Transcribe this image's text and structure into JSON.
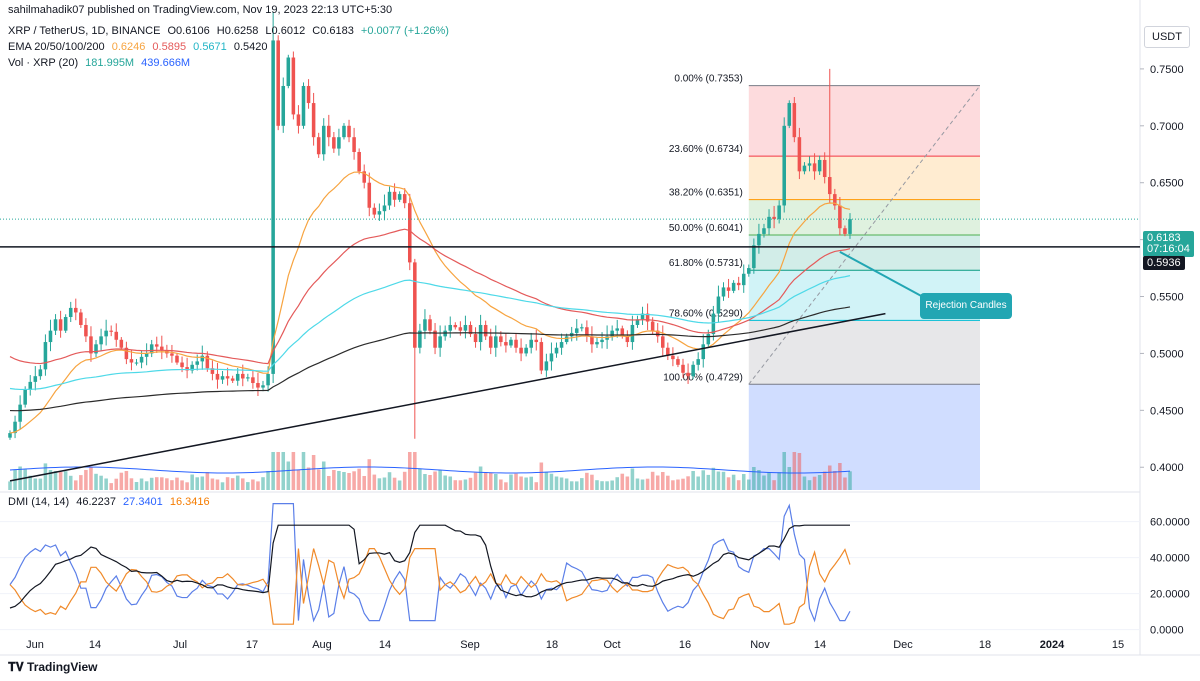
{
  "header": {
    "publisher_note": "sahilmahadik07 published on TradingView.com, Nov 19, 2023 22:13 UTC+5:30",
    "symbol_line": "XRP / TetherUS, 1D, BINANCE",
    "ohlc": {
      "o": "O0.6106",
      "h": "H0.6258",
      "l": "L0.6012",
      "c": "C0.6183",
      "chg": "+0.0077 (+1.26%)"
    },
    "ema_label": "EMA 20/50/100/200",
    "ema_values": [
      "0.6246",
      "0.5895",
      "0.5671",
      "0.5420"
    ],
    "vol_label": "Vol · XRP (20)",
    "vol_values": [
      "181.995M",
      "439.666M"
    ],
    "dmi_label": "DMI (14, 14)",
    "dmi_values": [
      "46.2237",
      "27.3401",
      "16.3416"
    ]
  },
  "currency_button": "USDT",
  "branding": "TradingView",
  "last_price": {
    "value": "0.6183",
    "countdown": "07:16:04"
  },
  "support_price": "0.5936",
  "callout_text": "Rejection Candles",
  "colors": {
    "up": "#26a69a",
    "down": "#ef5350",
    "ema20": "#f7a440",
    "ema50": "#e45a5a",
    "ema100": "#4ed9e8",
    "ema200": "#2b2b2b",
    "dmi_adx": "#131722",
    "dmi_plus": "#5b7fe8",
    "dmi_minus": "#f08a2a",
    "callout": "#22a6b3"
  },
  "chart_data": [
    {
      "type": "candlestick",
      "title": "XRP / TetherUS, 1D, BINANCE",
      "ylim": [
        0.38,
        0.8
      ],
      "y_ticks": [
        "0.7500",
        "0.7000",
        "0.6500",
        "0.6000",
        "0.5500",
        "0.5000",
        "0.4500",
        "0.4000"
      ],
      "x_ticks": [
        "Jun",
        "14",
        "Jul",
        "17",
        "Aug",
        "14",
        "Sep",
        "18",
        "Oct",
        "16",
        "Nov",
        "14",
        "Dec",
        "18",
        "2024",
        "15"
      ],
      "fib_levels": [
        {
          "label": "0.00% (0.7353)",
          "value": 0.7353
        },
        {
          "label": "23.60% (0.6734)",
          "value": 0.6734
        },
        {
          "label": "38.20% (0.6351)",
          "value": 0.6351
        },
        {
          "label": "50.00% (0.6041)",
          "value": 0.6041
        },
        {
          "label": "61.80% (0.5731)",
          "value": 0.5731
        },
        {
          "label": "78.60% (0.5290)",
          "value": 0.529
        },
        {
          "label": "100.00% (0.4729)",
          "value": 0.4729
        }
      ],
      "support_level": 0.5936,
      "trendline": [
        [
          0,
          0.388
        ],
        [
          173,
          0.535
        ]
      ],
      "close_series": [
        0.43,
        0.44,
        0.455,
        0.468,
        0.475,
        0.48,
        0.486,
        0.51,
        0.52,
        0.53,
        0.52,
        0.532,
        0.54,
        0.536,
        0.525,
        0.515,
        0.5,
        0.508,
        0.515,
        0.52,
        0.519,
        0.512,
        0.505,
        0.495,
        0.492,
        0.492,
        0.497,
        0.5,
        0.508,
        0.506,
        0.503,
        0.5,
        0.498,
        0.492,
        0.488,
        0.485,
        0.49,
        0.493,
        0.498,
        0.487,
        0.482,
        0.477,
        0.48,
        0.478,
        0.476,
        0.482,
        0.478,
        0.479,
        0.474,
        0.47,
        0.472,
        0.482,
        0.775,
        0.7,
        0.735,
        0.76,
        0.71,
        0.7,
        0.735,
        0.72,
        0.69,
        0.675,
        0.7,
        0.69,
        0.68,
        0.69,
        0.7,
        0.69,
        0.677,
        0.66,
        0.65,
        0.628,
        0.622,
        0.625,
        0.63,
        0.642,
        0.635,
        0.64,
        0.632,
        0.58,
        0.505,
        0.52,
        0.53,
        0.52,
        0.505,
        0.515,
        0.52,
        0.525,
        0.523,
        0.52,
        0.525,
        0.517,
        0.51,
        0.525,
        0.515,
        0.505,
        0.515,
        0.51,
        0.507,
        0.512,
        0.505,
        0.5,
        0.505,
        0.512,
        0.51,
        0.485,
        0.493,
        0.5,
        0.505,
        0.51,
        0.515,
        0.518,
        0.522,
        0.523,
        0.515,
        0.508,
        0.51,
        0.512,
        0.515,
        0.52,
        0.522,
        0.515,
        0.51,
        0.525,
        0.53,
        0.535,
        0.528,
        0.52,
        0.515,
        0.505,
        0.498,
        0.495,
        0.49,
        0.483,
        0.48,
        0.49,
        0.495,
        0.508,
        0.517,
        0.535,
        0.55,
        0.558,
        0.555,
        0.562,
        0.56,
        0.57,
        0.575,
        0.595,
        0.605,
        0.61,
        0.62,
        0.618,
        0.63,
        0.7,
        0.72,
        0.69,
        0.66,
        0.665,
        0.667,
        0.66,
        0.67,
        0.655,
        0.64,
        0.63,
        0.61,
        0.605,
        0.618
      ]
    },
    {
      "type": "line",
      "title": "DMI (14, 14)",
      "ylim": [
        -0.03,
        0.72
      ],
      "y_ticks": [
        "60.0000",
        "40.0000",
        "20.0000",
        "0.0000"
      ]
    }
  ]
}
